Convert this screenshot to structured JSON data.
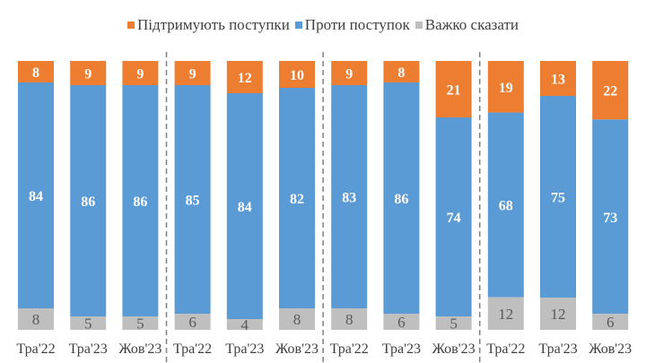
{
  "chart_data": {
    "type": "bar",
    "stacked": true,
    "categories": [
      "Тра'22",
      "Тра'23",
      "Жов'23",
      "Тра'22",
      "Тра'23",
      "Жов'23",
      "Тра'22",
      "Тра'23",
      "Жов'23",
      "Тра'22",
      "Тра'23",
      "Жов'23"
    ],
    "groups_of": 3,
    "series": [
      {
        "name": "Підтримують поступки",
        "color": "#ED7D31",
        "values": [
          8,
          9,
          9,
          9,
          12,
          10,
          9,
          8,
          21,
          19,
          13,
          22
        ]
      },
      {
        "name": "Проти поступок",
        "color": "#5B9BD5",
        "values": [
          84,
          86,
          86,
          85,
          84,
          82,
          83,
          86,
          74,
          68,
          75,
          73
        ]
      },
      {
        "name": "Важко сказати",
        "color": "#BFBFBF",
        "values": [
          8,
          5,
          5,
          6,
          4,
          8,
          8,
          6,
          5,
          12,
          12,
          6
        ]
      }
    ],
    "legend_position": "top",
    "grid": false,
    "group_separators": "dashed"
  }
}
